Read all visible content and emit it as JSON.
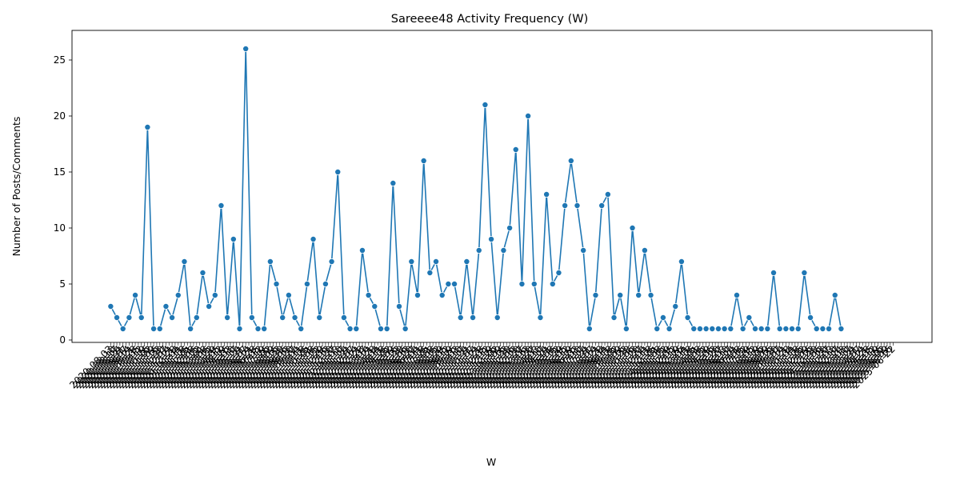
{
  "chart_data": {
    "type": "line",
    "title": "Sareeee48 Activity Frequency (W)",
    "xlabel": "W",
    "ylabel": "Number of Posts/Comments",
    "ylim": [
      0,
      27
    ],
    "yticks": [
      0,
      5,
      10,
      15,
      20,
      25
    ],
    "grid": false,
    "legend": "none",
    "line_color": "#1f77b4",
    "x": [
      "2020-08-03",
      "2020-08-10",
      "2020-08-17",
      "2020-08-24",
      "2020-08-31",
      "2020-09-07",
      "2020-09-14",
      "2020-09-21",
      "2020-09-28",
      "2020-10-05",
      "2020-10-12",
      "2020-10-19",
      "2020-10-26",
      "2020-11-02",
      "2020-11-09",
      "2020-11-16",
      "2020-11-23",
      "2020-11-30",
      "2020-12-07",
      "2020-12-14",
      "2020-12-21",
      "2020-12-28",
      "2021-01-04",
      "2021-01-11",
      "2021-01-18",
      "2021-01-25",
      "2021-02-01",
      "2021-02-08",
      "2021-02-15",
      "2021-02-22",
      "2021-03-01",
      "2021-03-08",
      "2021-03-15",
      "2021-03-22",
      "2021-03-29",
      "2021-04-05",
      "2021-04-12",
      "2021-04-19",
      "2021-04-26",
      "2021-05-03",
      "2021-05-10",
      "2021-05-17",
      "2021-05-24",
      "2021-05-31",
      "2021-06-07",
      "2021-06-14",
      "2021-06-21",
      "2021-06-28",
      "2021-07-05",
      "2021-07-12",
      "2021-07-19",
      "2021-07-26",
      "2021-08-02",
      "2021-08-09",
      "2021-08-16",
      "2021-08-23",
      "2021-08-30",
      "2021-09-06",
      "2021-09-13",
      "2021-09-20",
      "2021-09-27",
      "2021-10-04",
      "2021-10-11",
      "2021-10-18",
      "2021-10-25",
      "2021-11-01",
      "2021-11-08",
      "2021-11-15",
      "2021-11-22",
      "2021-11-29",
      "2021-12-06",
      "2021-12-13",
      "2021-12-20",
      "2021-12-27",
      "2022-01-03",
      "2022-01-10",
      "2022-01-17",
      "2022-01-24",
      "2022-01-31",
      "2022-02-07",
      "2022-02-14",
      "2022-02-21",
      "2022-02-28",
      "2022-03-07",
      "2022-03-14",
      "2022-03-21",
      "2022-03-28",
      "2022-04-04",
      "2022-04-11",
      "2022-04-18",
      "2022-04-25",
      "2022-05-02",
      "2022-05-09",
      "2022-05-16",
      "2022-05-23",
      "2022-05-30",
      "2022-06-06",
      "2022-06-13",
      "2022-06-20",
      "2022-06-27",
      "2022-07-04",
      "2022-07-11",
      "2022-07-18",
      "2022-07-25",
      "2022-08-01",
      "2022-08-08",
      "2022-08-15",
      "2022-08-22",
      "2022-08-29",
      "2022-09-05",
      "2022-09-12",
      "2022-09-19",
      "2022-09-26",
      "2022-10-03",
      "2022-10-10",
      "2022-10-17",
      "2022-10-24",
      "2022-10-31",
      "2022-11-07",
      "2022-11-14",
      "2022-11-21",
      "2022-11-28",
      "2022-12-05",
      "2022-12-12",
      "2022-12-19",
      "2022-12-26",
      "2023-01-02",
      "2023-01-09",
      "2023-01-16",
      "2023-01-23",
      "2023-01-30",
      "2023-02-06",
      "2023-02-13",
      "2023-02-20",
      "2023-02-27",
      "2023-03-06",
      "2023-03-13",
      "2023-03-20",
      "2023-03-27",
      "2023-04-03",
      "2023-04-10",
      "2023-04-17",
      "2023-04-24",
      "2023-05-01",
      "2023-05-08",
      "2023-05-15",
      "2023-05-22",
      "2023-05-29",
      "2023-06-05",
      "2023-06-12",
      "2023-06-19",
      "2023-06-26",
      "2023-07-03",
      "2023-07-10",
      "2023-07-17",
      "2023-07-24",
      "2023-07-31",
      "2023-08-07",
      "2023-08-14",
      "2023-08-21",
      "2023-08-28",
      "2023-09-04",
      "2023-09-11",
      "2023-09-18",
      "2023-09-25",
      "2023-10-02",
      "2023-10-09",
      "2023-10-16",
      "2023-10-23",
      "2023-10-30",
      "2023-11-06",
      "2023-11-13",
      "2023-11-20",
      "2023-11-27",
      "2023-12-04",
      "2023-12-11",
      "2023-12-18",
      "2023-12-25",
      "2024-01-01",
      "2024-01-08",
      "2024-01-15",
      "2024-01-22",
      "2024-01-29",
      "2024-02-05",
      "2024-02-12",
      "2024-02-19",
      "2024-02-26",
      "2024-03-04",
      "2024-03-11",
      "2024-03-18",
      "2024-03-25",
      "2024-04-01",
      "2024-04-08",
      "2024-04-15",
      "2024-04-22",
      "2024-04-29",
      "2024-05-06",
      "2024-05-13",
      "2024-05-20",
      "2024-05-27",
      "2024-06-03",
      "2024-06-10",
      "2024-06-17",
      "2024-06-24",
      "2024-07-01",
      "2024-07-08",
      "2024-07-15",
      "2024-07-22",
      "2024-07-29",
      "2024-08-05",
      "2024-08-12",
      "2024-08-19",
      "2024-08-26",
      "2024-09-02",
      "2024-09-09",
      "2024-09-16",
      "2024-09-23",
      "2024-09-30",
      "2024-10-07",
      "2024-10-14",
      "2024-10-21",
      "2024-10-28",
      "2024-11-04",
      "2024-11-11",
      "2024-11-18",
      "2024-11-25",
      "2024-12-02",
      "2024-12-09",
      "2024-12-16",
      "2024-12-23",
      "2024-12-30",
      "2025-01-06",
      "2025-01-13",
      "2025-01-20",
      "2025-01-27",
      "2025-02-03",
      "2025-02-10",
      "2025-02-17",
      "2025-02-24",
      "2025-03-03",
      "2025-03-10",
      "2025-03-17",
      "2025-03-24",
      "2025-03-31",
      "2025-04-07",
      "2025-04-14",
      "2025-04-21",
      "2025-04-28",
      "2025-05-05",
      "2025-05-12",
      "2025-05-19",
      "2025-05-26",
      "2025-06-02",
      "2025-06-09",
      "2025-06-16",
      "2025-06-22"
    ],
    "points": [
      [
        0,
        3
      ],
      [
        2,
        2
      ],
      [
        4,
        1
      ],
      [
        6,
        2
      ],
      [
        8,
        4
      ],
      [
        10,
        2
      ],
      [
        12,
        19
      ],
      [
        14,
        1
      ],
      [
        16,
        1
      ],
      [
        18,
        3
      ],
      [
        20,
        2
      ],
      [
        22,
        4
      ],
      [
        24,
        7
      ],
      [
        26,
        1
      ],
      [
        28,
        2
      ],
      [
        30,
        6
      ],
      [
        32,
        3
      ],
      [
        34,
        4
      ],
      [
        36,
        12
      ],
      [
        38,
        2
      ],
      [
        40,
        9
      ],
      [
        42,
        1
      ],
      [
        44,
        26
      ],
      [
        46,
        2
      ],
      [
        48,
        1
      ],
      [
        50,
        1
      ],
      [
        52,
        7
      ],
      [
        54,
        5
      ],
      [
        56,
        2
      ],
      [
        58,
        4
      ],
      [
        60,
        2
      ],
      [
        62,
        1
      ],
      [
        64,
        5
      ],
      [
        66,
        9
      ],
      [
        68,
        2
      ],
      [
        70,
        5
      ],
      [
        72,
        7
      ],
      [
        74,
        15
      ],
      [
        76,
        2
      ],
      [
        78,
        1
      ],
      [
        80,
        1
      ],
      [
        82,
        8
      ],
      [
        84,
        4
      ],
      [
        86,
        3
      ],
      [
        88,
        1
      ],
      [
        90,
        1
      ],
      [
        92,
        14
      ],
      [
        94,
        3
      ],
      [
        96,
        1
      ],
      [
        98,
        7
      ],
      [
        100,
        4
      ],
      [
        102,
        16
      ],
      [
        104,
        6
      ],
      [
        106,
        7
      ],
      [
        108,
        4
      ],
      [
        110,
        5
      ],
      [
        112,
        5
      ],
      [
        114,
        2
      ],
      [
        116,
        7
      ],
      [
        118,
        2
      ],
      [
        120,
        8
      ],
      [
        122,
        21
      ],
      [
        124,
        9
      ],
      [
        126,
        2
      ],
      [
        128,
        8
      ],
      [
        130,
        10
      ],
      [
        132,
        17
      ],
      [
        134,
        5
      ],
      [
        136,
        20
      ],
      [
        138,
        5
      ],
      [
        140,
        2
      ],
      [
        142,
        13
      ],
      [
        144,
        5
      ],
      [
        146,
        6
      ],
      [
        148,
        12
      ],
      [
        150,
        16
      ],
      [
        152,
        12
      ],
      [
        154,
        8
      ],
      [
        156,
        1
      ],
      [
        158,
        4
      ],
      [
        160,
        12
      ],
      [
        162,
        13
      ],
      [
        164,
        2
      ],
      [
        166,
        4
      ],
      [
        168,
        1
      ],
      [
        170,
        10
      ],
      [
        172,
        4
      ],
      [
        174,
        8
      ],
      [
        176,
        4
      ],
      [
        178,
        1
      ],
      [
        180,
        2
      ],
      [
        182,
        1
      ],
      [
        184,
        3
      ],
      [
        186,
        7
      ],
      [
        188,
        2
      ],
      [
        190,
        1
      ],
      [
        192,
        1
      ],
      [
        194,
        1
      ],
      [
        196,
        1
      ],
      [
        198,
        1
      ],
      [
        200,
        1
      ],
      [
        202,
        1
      ],
      [
        204,
        4
      ],
      [
        206,
        1
      ],
      [
        208,
        2
      ],
      [
        210,
        1
      ],
      [
        212,
        1
      ],
      [
        214,
        1
      ],
      [
        216,
        6
      ],
      [
        218,
        1
      ],
      [
        220,
        1
      ],
      [
        222,
        1
      ],
      [
        224,
        1
      ],
      [
        226,
        6
      ],
      [
        228,
        2
      ],
      [
        230,
        1
      ],
      [
        232,
        1
      ],
      [
        234,
        1
      ],
      [
        236,
        4
      ],
      [
        238,
        1
      ]
    ]
  }
}
